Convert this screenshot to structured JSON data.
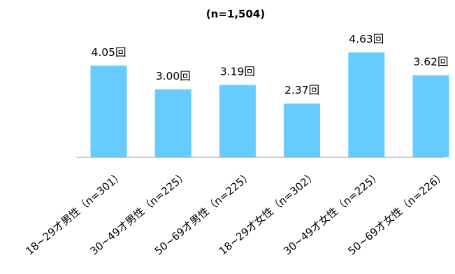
{
  "chart_data": {
    "type": "bar",
    "title": "(n=1,504)",
    "categories": [
      "18~29才男性（n=301）",
      "30~49才男性（n=225）",
      "50~69才男性（n=225）",
      "18~29才女性（n=302）",
      "30~49才女性（n=225）",
      "50~69才女性（n=226）"
    ],
    "values": [
      4.05,
      3.0,
      3.19,
      2.37,
      4.63,
      3.62
    ],
    "data_labels": [
      "4.05回",
      "3.00回",
      "3.19回",
      "2.37回",
      "4.63回",
      "3.62回"
    ],
    "ylim": [
      0,
      5
    ],
    "grid": false,
    "legend": "none",
    "colors": {
      "bar": "#66CCFF",
      "axis": "#9E9E9E",
      "text": "#000000"
    }
  }
}
